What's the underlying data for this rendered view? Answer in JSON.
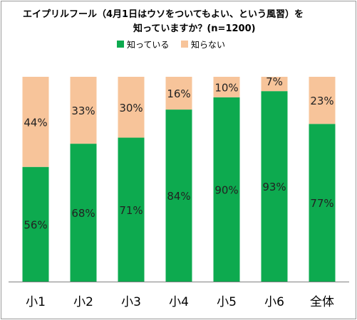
{
  "colors": {
    "know": "#0DAA4F",
    "not_know": "#F7C49A",
    "axis": "#808080"
  },
  "chart_data": {
    "type": "bar",
    "stacked": true,
    "percent": true,
    "title": "エイプリルフール（4月1日はウソをついてもよい、という風習）を",
    "subtitle": "知っていますか？(n=1200)",
    "categories": [
      "小1",
      "小2",
      "小3",
      "小4",
      "小5",
      "小6",
      "全体"
    ],
    "series": [
      {
        "name": "知っている",
        "values": [
          56,
          68,
          71,
          84,
          90,
          93,
          77
        ],
        "labels": [
          "56%",
          "68%",
          "71%",
          "84%",
          "90%",
          "93%",
          "77%"
        ]
      },
      {
        "name": "知らない",
        "values": [
          44,
          33,
          30,
          16,
          10,
          7,
          23
        ],
        "labels": [
          "44%",
          "33%",
          "30%",
          "16%",
          "10%",
          "7%",
          "23%"
        ]
      }
    ],
    "ylim": [
      0,
      100
    ],
    "legend": "top-center",
    "grid": false
  }
}
